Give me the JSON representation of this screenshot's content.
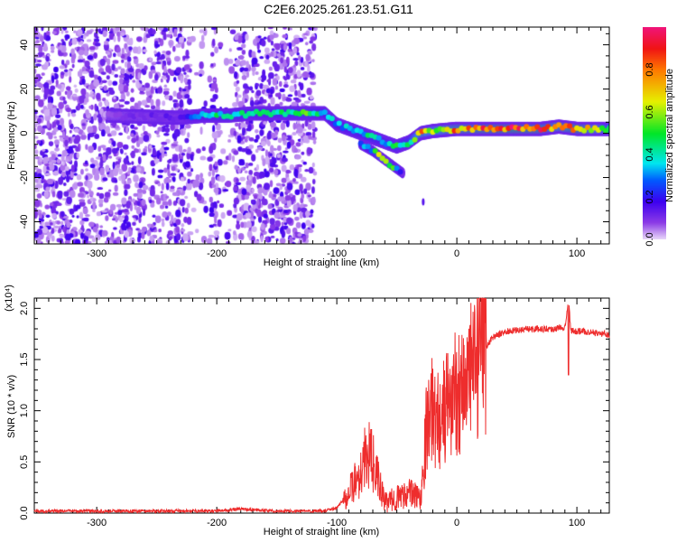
{
  "title": "C2E6.2025.261.23.51.G11",
  "chart_data": [
    {
      "type": "heatmap",
      "title": "C2E6.2025.261.23.51.G11",
      "xlabel": "Height of straight line (km)",
      "ylabel": "Frequency (Hz)",
      "xlim": [
        -352,
        127
      ],
      "ylim": [
        -50,
        48
      ],
      "xticks": [
        -300,
        -200,
        -100,
        0,
        100
      ],
      "yticks": [
        -40,
        -20,
        0,
        20,
        40
      ],
      "colorbar": {
        "label": "Normalized spectral amplitude",
        "ticks": [
          "0.0",
          "0.2",
          "0.4",
          "0.6",
          "0.8"
        ],
        "range": [
          0,
          1
        ]
      },
      "ridge": {
        "x": [
          -290,
          -230,
          -210,
          -190,
          -170,
          -150,
          -125,
          -110,
          -100,
          -90,
          -80,
          -70,
          -60,
          -50,
          -40,
          -30,
          -20,
          0,
          20,
          50,
          70,
          85,
          100,
          127
        ],
        "y": [
          8,
          7,
          8,
          8,
          9,
          9,
          9,
          9,
          4,
          2,
          0,
          -2,
          -4,
          -6,
          -4,
          0,
          1,
          2,
          2,
          2,
          2,
          3,
          2,
          2
        ],
        "amplitude": [
          0.1,
          0.15,
          0.4,
          0.5,
          0.45,
          0.45,
          0.55,
          0.4,
          0.35,
          0.4,
          0.4,
          0.45,
          0.4,
          0.5,
          0.5,
          0.8,
          0.7,
          0.85,
          0.9,
          0.95,
          0.9,
          0.8,
          0.95,
          0.6
        ]
      },
      "secondary_branch": {
        "x": [
          -80,
          -70,
          -60,
          -50,
          -45
        ],
        "y": [
          -5,
          -8,
          -12,
          -16,
          -18
        ],
        "amplitude": [
          0.3,
          0.4,
          0.8,
          0.4,
          0.2
        ]
      },
      "noise_region_km": [
        -352,
        -118
      ]
    },
    {
      "type": "line",
      "xlabel": "Height of straight line (km)",
      "ylabel": "SNR (10 * v/v)",
      "yscale_label": "(x10⁴)",
      "xlim": [
        -352,
        127
      ],
      "ylim": [
        0,
        2.1
      ],
      "xticks": [
        -300,
        -200,
        -100,
        0,
        100
      ],
      "yticks": [
        "0.0",
        "0.5",
        "1.0",
        "1.5",
        "2.0"
      ],
      "series": [
        {
          "name": "SNR",
          "color": "#ee2d2d",
          "x": [
            -352,
            -200,
            -180,
            -150,
            -110,
            -100,
            -90,
            -80,
            -75,
            -70,
            -65,
            -60,
            -50,
            -40,
            -30,
            -25,
            -20,
            -15,
            -10,
            -5,
            0,
            10,
            20,
            30,
            40,
            60,
            80,
            90,
            93,
            95,
            110,
            127
          ],
          "y": [
            0.02,
            0.02,
            0.04,
            0.02,
            0.02,
            0.05,
            0.2,
            0.4,
            0.6,
            0.5,
            0.3,
            0.1,
            0.15,
            0.2,
            0.15,
            0.9,
            1.0,
            0.9,
            1.0,
            1.1,
            1.2,
            1.3,
            1.55,
            1.72,
            1.77,
            1.8,
            1.8,
            1.82,
            2.1,
            1.78,
            1.77,
            1.74
          ]
        }
      ]
    }
  ]
}
